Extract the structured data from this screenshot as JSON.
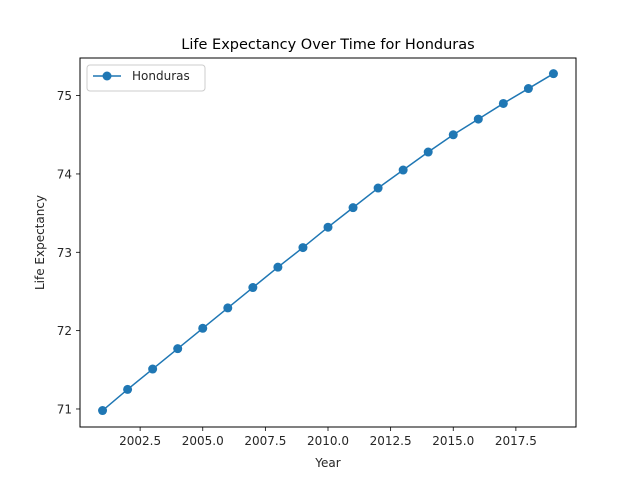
{
  "chart_data": {
    "type": "line",
    "title": "Life Expectancy Over Time for Honduras",
    "xlabel": "Year",
    "ylabel": "Life Expectancy",
    "xlim": [
      2000.1,
      2019.9
    ],
    "ylim": [
      70.77,
      75.48
    ],
    "xticks": [
      2002.5,
      2005.0,
      2007.5,
      2010.0,
      2012.5,
      2015.0,
      2017.5
    ],
    "xtick_labels": [
      "2002.5",
      "2005.0",
      "2007.5",
      "2010.0",
      "2012.5",
      "2015.0",
      "2017.5"
    ],
    "yticks": [
      71,
      72,
      73,
      74,
      75
    ],
    "ytick_labels": [
      "71",
      "72",
      "73",
      "74",
      "75"
    ],
    "grid": false,
    "legend_position": "upper-left",
    "series": [
      {
        "name": "Honduras",
        "color": "#1f77b4",
        "marker": "circle",
        "x": [
          2001,
          2002,
          2003,
          2004,
          2005,
          2006,
          2007,
          2008,
          2009,
          2010,
          2011,
          2012,
          2013,
          2014,
          2015,
          2016,
          2017,
          2018,
          2019
        ],
        "y": [
          70.98,
          71.25,
          71.51,
          71.77,
          72.03,
          72.29,
          72.55,
          72.81,
          73.06,
          73.32,
          73.57,
          73.82,
          74.05,
          74.28,
          74.5,
          74.7,
          74.9,
          75.09,
          75.28
        ]
      }
    ]
  }
}
